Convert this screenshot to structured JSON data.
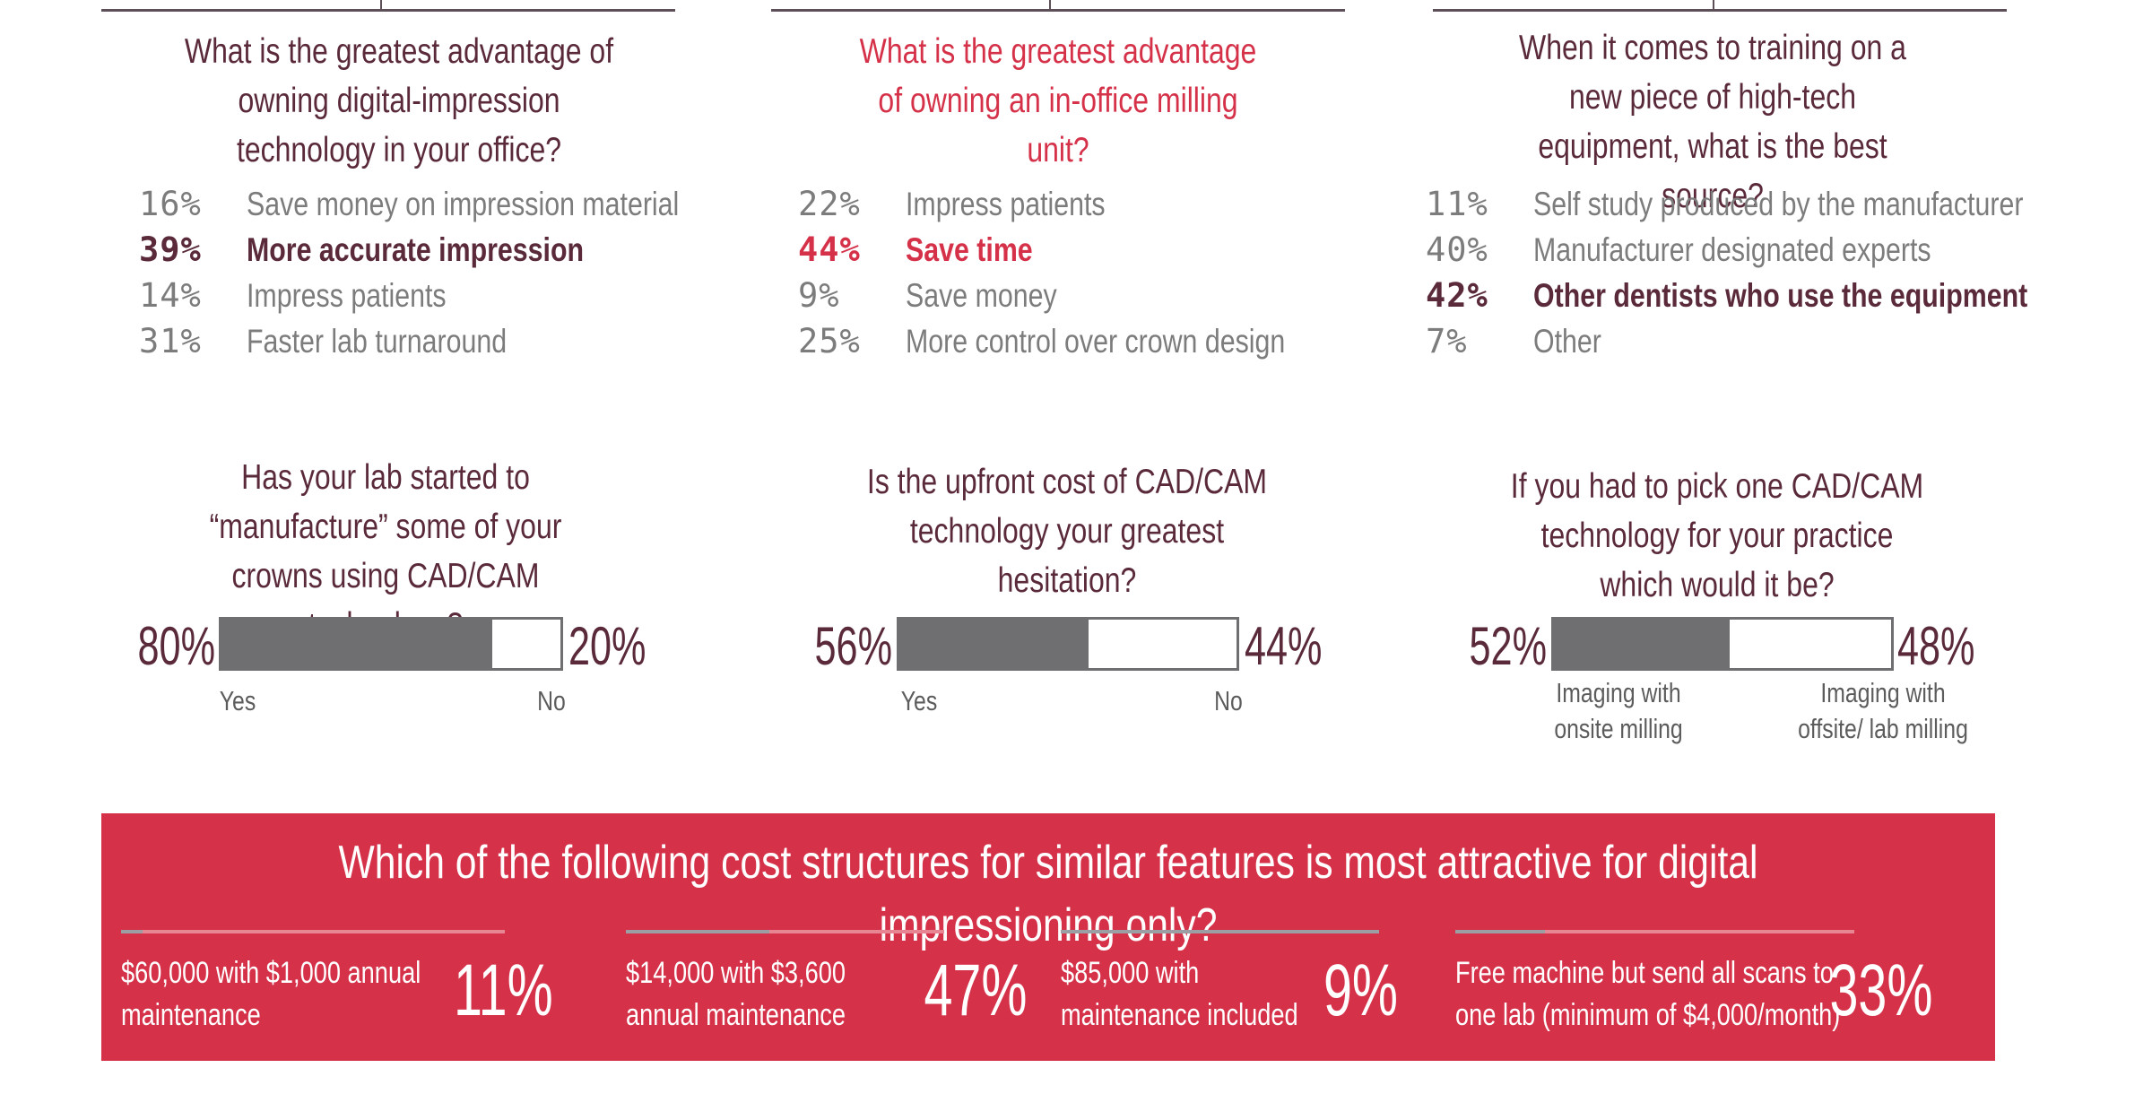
{
  "chart_data": [
    {
      "type": "table",
      "title": "What is the greatest advantage of owning digital-impression technology in your office?",
      "categories": [
        "Save money on impression material",
        "More accurate impression",
        "Impress patients",
        "Faster lab turnaround"
      ],
      "values": [
        16,
        39,
        14,
        31
      ],
      "value_labels": [
        "16%",
        "39%",
        "14%",
        "31%"
      ],
      "highlight_index": 1,
      "title_color": "#5a2a3b"
    },
    {
      "type": "table",
      "title": "What is the greatest advantage of owning an in-office milling unit?",
      "categories": [
        "Impress patients",
        "Save time",
        "Save money",
        "More control over crown design"
      ],
      "values": [
        22,
        44,
        9,
        25
      ],
      "value_labels": [
        "22%",
        "44%",
        "9%",
        "25%"
      ],
      "highlight_index": 1,
      "title_color": "#d5324a"
    },
    {
      "type": "table",
      "title": "When it comes to training on a new piece of high-tech equipment, what is the best source?",
      "categories": [
        "Self study produced by the manufacturer",
        "Manufacturer designated experts",
        "Other dentists who use the equipment",
        "Other"
      ],
      "values": [
        11,
        40,
        42,
        7
      ],
      "value_labels": [
        "11%",
        "40%",
        "42%",
        "7%"
      ],
      "highlight_index": 2,
      "title_color": "#5a2a3b"
    },
    {
      "type": "bar",
      "title": "Has your lab started to “manufacture” some of your crowns using CAD/CAM technology?",
      "categories": [
        "Yes",
        "No"
      ],
      "values": [
        80,
        20
      ],
      "value_labels": [
        "80%",
        "20%"
      ]
    },
    {
      "type": "bar",
      "title": "Is the upfront cost of CAD/CAM technology your greatest hesitation?",
      "categories": [
        "Yes",
        "No"
      ],
      "values": [
        56,
        44
      ],
      "value_labels": [
        "56%",
        "44%"
      ]
    },
    {
      "type": "bar",
      "title": "If you had to pick one CAD/CAM technology for your practice which would it be?",
      "categories": [
        "Imaging with onsite milling",
        "Imaging with offsite/ lab milling"
      ],
      "values": [
        52,
        48
      ],
      "value_labels": [
        "52%",
        "48%"
      ]
    },
    {
      "type": "table",
      "title": "Which of the following cost structures for similar features is most attractive for digital impressioning only?",
      "categories": [
        "$60,000 with $1,000 annual maintenance",
        "$14,000 with $3,600 annual maintenance",
        "$85,000 with maintenance included",
        "Free machine but send all scans to one lab (minimum of $4,000/month)"
      ],
      "values": [
        11,
        47,
        9,
        33
      ],
      "value_labels": [
        "11%",
        "47%",
        "9%",
        "33%"
      ],
      "category_lines": [
        [
          "$60,000 with $1,000 annual",
          "maintenance"
        ],
        [
          "$14,000 with $3,600",
          "annual maintenance"
        ],
        [
          "$85,000 with",
          "maintenance included"
        ],
        [
          "Free machine but send all scans to",
          "one lab (minimum of $4,000/month)"
        ]
      ],
      "background_color": "#d5324a"
    }
  ],
  "colors": {
    "dark": "#5a2a3b",
    "red": "#d5324a",
    "gray_text": "#7c7c7c",
    "bar": "#6f6f71"
  }
}
